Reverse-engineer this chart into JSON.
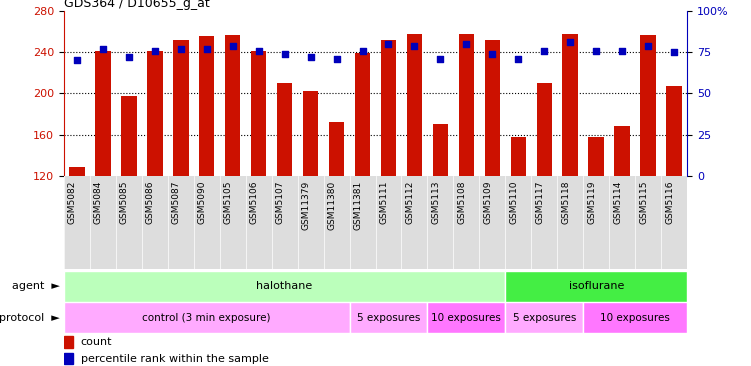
{
  "title": "GDS364 / D10655_g_at",
  "samples": [
    "GSM5082",
    "GSM5084",
    "GSM5085",
    "GSM5086",
    "GSM5087",
    "GSM5090",
    "GSM5105",
    "GSM5106",
    "GSM5107",
    "GSM11379",
    "GSM11380",
    "GSM11381",
    "GSM5111",
    "GSM5112",
    "GSM5113",
    "GSM5108",
    "GSM5109",
    "GSM5110",
    "GSM5117",
    "GSM5118",
    "GSM5119",
    "GSM5114",
    "GSM5115",
    "GSM5116"
  ],
  "counts": [
    128,
    241,
    197,
    241,
    252,
    256,
    257,
    241,
    210,
    202,
    172,
    239,
    252,
    258,
    170,
    258,
    252,
    158,
    210,
    258,
    158,
    168,
    257,
    207
  ],
  "percentiles": [
    70,
    77,
    72,
    76,
    77,
    77,
    79,
    76,
    74,
    72,
    71,
    76,
    80,
    79,
    71,
    80,
    74,
    71,
    76,
    81,
    76,
    76,
    79,
    75
  ],
  "ylim_left": [
    120,
    280
  ],
  "ylim_right": [
    0,
    100
  ],
  "yticks_left": [
    120,
    160,
    200,
    240,
    280
  ],
  "yticks_right": [
    0,
    25,
    50,
    75,
    100
  ],
  "bar_color": "#CC1100",
  "dot_color": "#0000BB",
  "background_color": "#FFFFFF",
  "agent_groups": [
    {
      "label": "halothane",
      "start": 0,
      "end": 17,
      "color": "#BBFFBB"
    },
    {
      "label": "isoflurane",
      "start": 17,
      "end": 24,
      "color": "#44EE44"
    }
  ],
  "protocol_groups": [
    {
      "label": "control (3 min exposure)",
      "start": 0,
      "end": 11,
      "color": "#FFAAFF"
    },
    {
      "label": "5 exposures",
      "start": 11,
      "end": 14,
      "color": "#FFAAFF"
    },
    {
      "label": "10 exposures",
      "start": 14,
      "end": 17,
      "color": "#FF77FF"
    },
    {
      "label": "5 exposures",
      "start": 17,
      "end": 20,
      "color": "#FFAAFF"
    },
    {
      "label": "10 exposures",
      "start": 20,
      "end": 24,
      "color": "#FF77FF"
    }
  ]
}
